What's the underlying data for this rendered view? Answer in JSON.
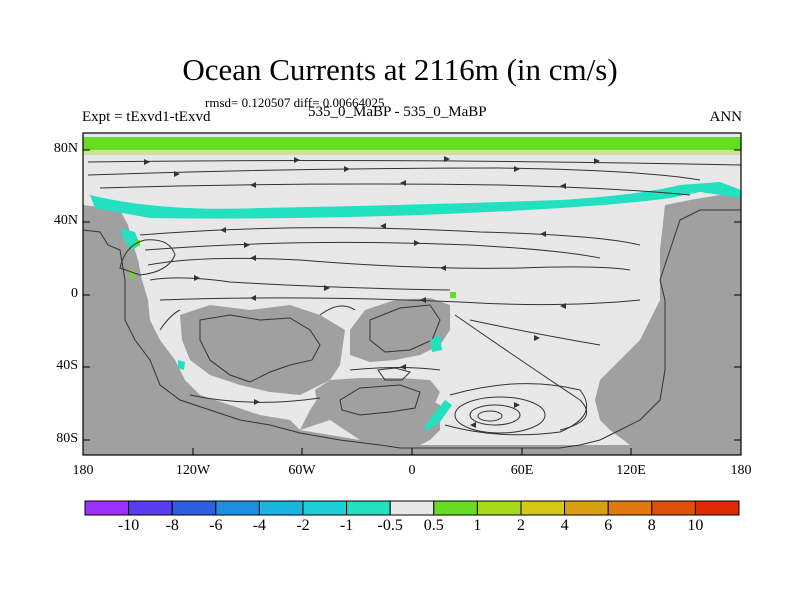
{
  "title": "Ocean Currents at 2116m (in cm/s)",
  "stats": "rmsd= 0.120507 diff= 0.00664025",
  "left_label": "Expt = tExvd1-tExvd",
  "center_label": "535_0_MaBP - 535_0_MaBP",
  "right_label": "ANN",
  "chart_data": {
    "type": "map",
    "lon_ticks": [
      "180",
      "120W",
      "60W",
      "0",
      "60E",
      "120E",
      "180"
    ],
    "lat_ticks": [
      "80N",
      "40N",
      "0",
      "40S",
      "80S"
    ],
    "colorbar": {
      "labels": [
        "-10",
        "-8",
        "-6",
        "-4",
        "-2",
        "-1",
        "-0.5",
        "0.5",
        "1",
        "2",
        "4",
        "6",
        "8",
        "10"
      ],
      "colors": [
        "#9b30ff",
        "#5a3cf0",
        "#2e5fe0",
        "#1e8fe0",
        "#1ab4e0",
        "#1ccfd8",
        "#22e0c0",
        "#e8e8e8",
        "#66dd22",
        "#a8d81a",
        "#d4c814",
        "#d8a010",
        "#e07a0c",
        "#e05008",
        "#e02a06"
      ]
    },
    "land_color": "#a0a0a0",
    "background_color": "#e8e8e8"
  }
}
